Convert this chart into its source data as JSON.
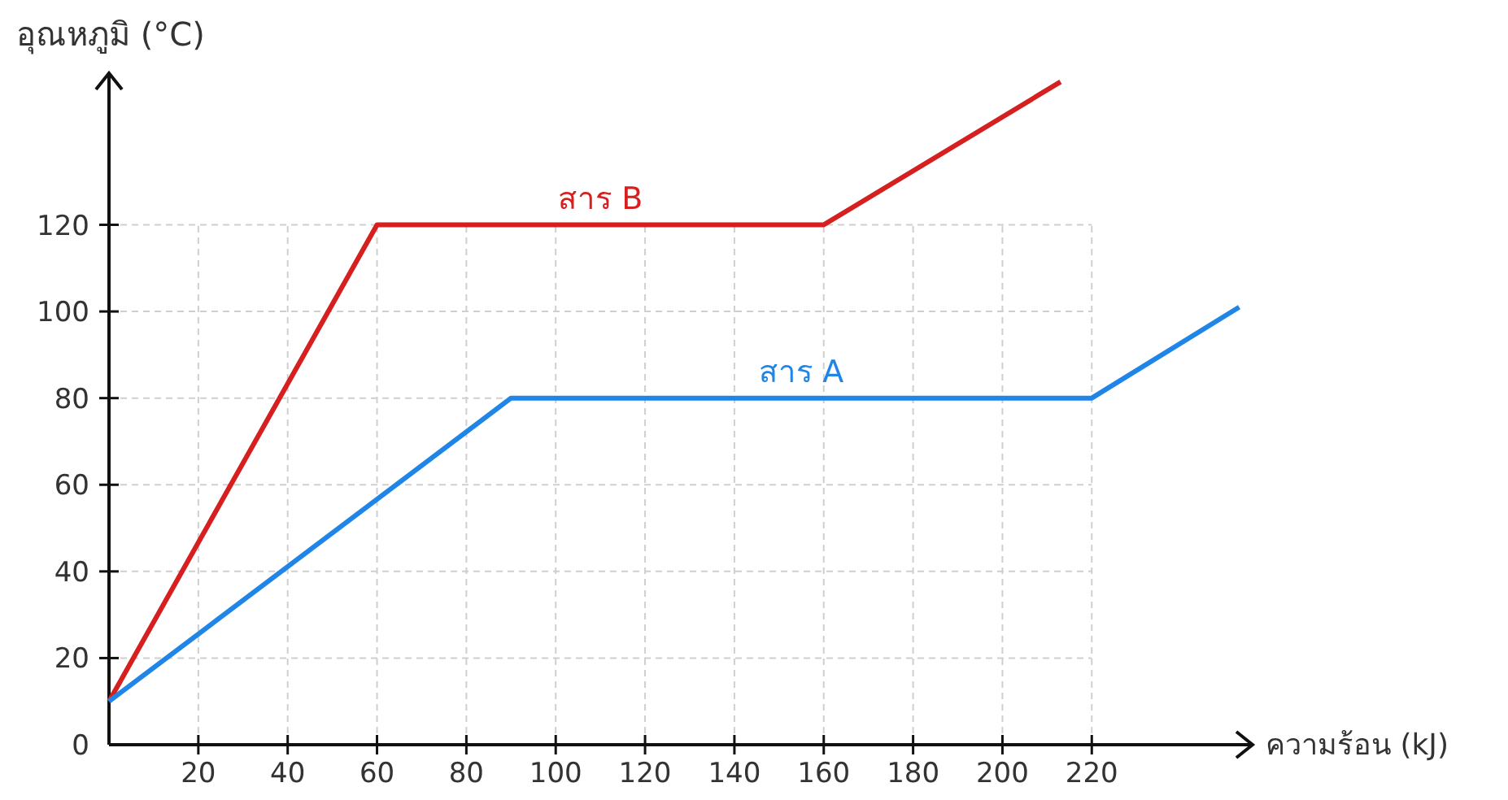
{
  "chart_data": {
    "type": "line",
    "xlabel": "ความร้อน (kJ)",
    "ylabel": "อุณหภูมิ (°C)",
    "xlim": [
      0,
      256
    ],
    "ylim": [
      0,
      155
    ],
    "xticks": [
      20,
      40,
      60,
      80,
      100,
      120,
      140,
      160,
      180,
      200,
      220
    ],
    "yticks": [
      0,
      20,
      40,
      60,
      80,
      100,
      120
    ],
    "grid": true,
    "legend": false,
    "marker": "none",
    "line_style": "solid",
    "series": [
      {
        "name": "สาร B",
        "color": "#d61f1f",
        "x": [
          0,
          60,
          160,
          213
        ],
        "values": [
          10,
          120,
          120,
          153
        ]
      },
      {
        "name": "สาร A",
        "color": "#1f86e8",
        "x": [
          0,
          90,
          220,
          253
        ],
        "values": [
          10,
          80,
          80,
          101
        ]
      }
    ]
  }
}
